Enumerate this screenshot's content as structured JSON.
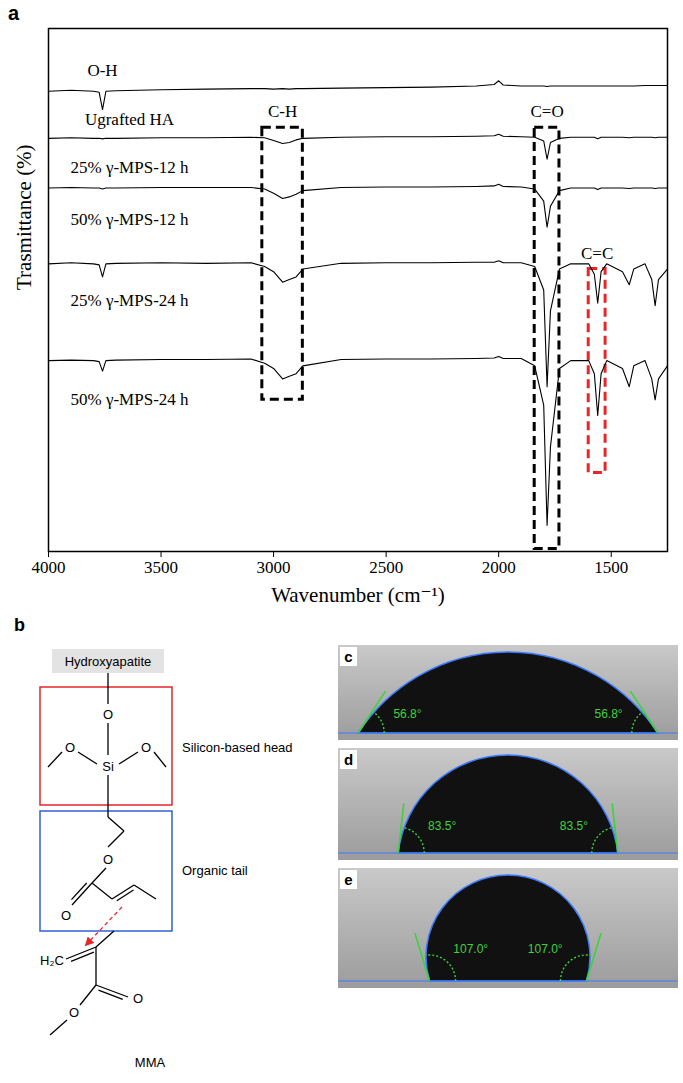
{
  "chart_data": {
    "type": "line",
    "panel": "a",
    "xlabel": "Wavenumber (cm⁻¹)",
    "ylabel": "Trasmittance (%)",
    "xlim": [
      4000,
      1250
    ],
    "xticks": [
      4000,
      3500,
      3000,
      2500,
      2000,
      1500
    ],
    "ylim": [
      0,
      100
    ],
    "yticks": [],
    "tick_labels": "x",
    "grid": false,
    "x": [
      4000,
      3900,
      3800,
      3775,
      3760,
      3745,
      3700,
      3500,
      3300,
      3100,
      3040,
      3000,
      2960,
      2930,
      2900,
      2870,
      2700,
      2500,
      2300,
      2100,
      2020,
      2000,
      1980,
      1900,
      1840,
      1800,
      1785,
      1770,
      1730,
      1680,
      1600,
      1575,
      1560,
      1545,
      1520,
      1450,
      1420,
      1400,
      1350,
      1320,
      1305,
      1290,
      1250
    ],
    "series": [
      {
        "name": "Ugrafted HA",
        "color": "#000000",
        "label_x": 3640,
        "label_y": 82.5,
        "values": [
          88,
          88.2,
          88,
          87.8,
          84.5,
          88,
          88.1,
          88.3,
          88.4,
          88.5,
          88.5,
          88.4,
          88.5,
          88.4,
          88.5,
          88.5,
          88.6,
          88.7,
          88.8,
          89,
          89.3,
          90,
          89.2,
          89,
          89,
          89,
          88.9,
          89,
          89,
          89,
          89,
          89,
          89,
          89,
          89,
          89,
          89,
          89,
          89.1,
          89.1,
          89.1,
          89.1,
          89.1
        ]
      },
      {
        "name": "25% γ-MPS-12 h",
        "color": "#000000",
        "label_x": 3640,
        "label_y": 73.5,
        "values": [
          79,
          79.1,
          79,
          79,
          78.9,
          79,
          79,
          79.1,
          79.1,
          79.2,
          79.1,
          78.6,
          78,
          78.2,
          78.7,
          79,
          79.2,
          79.3,
          79.3,
          79.4,
          79.5,
          79.8,
          79.4,
          79.3,
          79.2,
          78.5,
          75,
          78.2,
          79,
          79.2,
          79.2,
          79.2,
          78.9,
          79.2,
          79.2,
          79.2,
          79.1,
          79.2,
          79.2,
          79.2,
          79.1,
          79.2,
          79.2
        ]
      },
      {
        "name": "50% γ-MPS-12 h",
        "color": "#000000",
        "label_x": 3640,
        "label_y": 63.5,
        "values": [
          69.5,
          69.6,
          69.5,
          69.5,
          69.3,
          69.5,
          69.5,
          69.6,
          69.6,
          69.6,
          69.3,
          68.5,
          67.5,
          67.8,
          68.3,
          69,
          69.6,
          69.7,
          69.7,
          69.8,
          69.9,
          70.2,
          69.8,
          69.7,
          69.3,
          67,
          62,
          66,
          69,
          69.5,
          69.5,
          69.5,
          69.2,
          69.5,
          69.5,
          69.5,
          69.4,
          69.5,
          69.5,
          69.5,
          69.4,
          69.5,
          69.5
        ]
      },
      {
        "name": "25% γ-MPS-24 h",
        "color": "#000000",
        "label_x": 3640,
        "label_y": 48,
        "values": [
          55,
          55.2,
          55,
          54.8,
          52.5,
          55,
          55.1,
          55.2,
          55.1,
          55.2,
          54.5,
          53.5,
          51.5,
          52,
          52.5,
          54,
          55.1,
          55.2,
          55.2,
          55.3,
          55.3,
          55.6,
          55.2,
          55.2,
          54.5,
          50,
          31.5,
          46,
          54,
          55,
          55,
          53,
          47.5,
          53.5,
          55,
          53.5,
          51,
          54,
          55,
          52,
          47,
          52,
          54
        ]
      },
      {
        "name": "50% γ-MPS-24 h",
        "color": "#000000",
        "label_x": 3640,
        "label_y": 29,
        "values": [
          36.5,
          36.6,
          36.5,
          36.3,
          34.5,
          36.5,
          36.6,
          36.7,
          36.7,
          36.8,
          36,
          35,
          33,
          33.5,
          34,
          35.5,
          36.7,
          36.8,
          36.8,
          36.9,
          37,
          37.3,
          36.9,
          36.9,
          35.5,
          28,
          5,
          20,
          35,
          36.5,
          36.5,
          34,
          26,
          34,
          36.5,
          35,
          31.5,
          35.5,
          36.5,
          33,
          29,
          33,
          35.5
        ]
      }
    ],
    "annotations": [
      {
        "text": "O-H",
        "x": 3760,
        "y": 92
      }
    ],
    "boxes": [
      {
        "label": "C-H",
        "x1": 3050,
        "x2": 2870,
        "y1": 29,
        "y2": 81,
        "color": "#000000"
      },
      {
        "label": "C=O",
        "x1": 1840,
        "x2": 1730,
        "y1": 0.5,
        "y2": 81,
        "color": "#000000"
      },
      {
        "label": "C=C",
        "x1": 1600,
        "x2": 1525,
        "y1": 15,
        "y2": 54,
        "color": "#e8262a"
      }
    ]
  },
  "diagram": {
    "panel": "b",
    "substrate": "Hydroxyapatite",
    "head": {
      "label": "Silicon-based head",
      "atoms": [
        "O",
        "Si",
        "O",
        "O"
      ]
    },
    "tail": {
      "label": "Organic tail",
      "atoms": [
        "O",
        "O"
      ]
    },
    "monomer": {
      "label": "MMA",
      "atoms": [
        "H₂C",
        "O",
        "O"
      ]
    }
  },
  "contact_angles": [
    {
      "panel": "c",
      "angle": 56.8,
      "label": "56.8°"
    },
    {
      "panel": "d",
      "angle": 83.5,
      "label": "83.5°"
    },
    {
      "panel": "e",
      "angle": 107.0,
      "label": "107.0°"
    }
  ]
}
